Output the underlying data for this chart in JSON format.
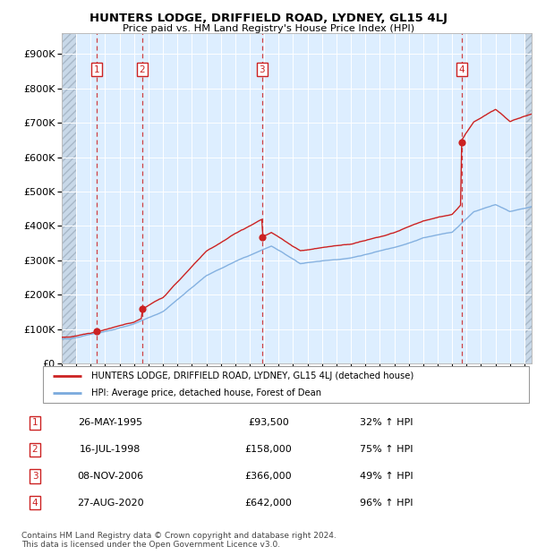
{
  "title": "HUNTERS LODGE, DRIFFIELD ROAD, LYDNEY, GL15 4LJ",
  "subtitle": "Price paid vs. HM Land Registry's House Price Index (HPI)",
  "ytick_values": [
    0,
    100000,
    200000,
    300000,
    400000,
    500000,
    600000,
    700000,
    800000,
    900000
  ],
  "ylim": [
    0,
    960000
  ],
  "xlim_start": 1993.0,
  "xlim_end": 2025.5,
  "hpi_color": "#7aaadd",
  "price_color": "#cc2222",
  "bg_plain": "#ddeeff",
  "bg_hatch_face": "#d0dff0",
  "bg_hatch_edge": "#b0c8dd",
  "grid_color": "#ffffff",
  "purchases": [
    {
      "label": "1",
      "date": "26-MAY-1995",
      "price": 93500,
      "pct": "32% ↑ HPI",
      "year": 1995.4
    },
    {
      "label": "2",
      "date": "16-JUL-1998",
      "price": 158000,
      "pct": "75% ↑ HPI",
      "year": 1998.55
    },
    {
      "label": "3",
      "date": "08-NOV-2006",
      "price": 366000,
      "pct": "49% ↑ HPI",
      "year": 2006.85
    },
    {
      "label": "4",
      "date": "27-AUG-2020",
      "price": 642000,
      "pct": "96% ↑ HPI",
      "year": 2020.65
    }
  ],
  "legend_line1": "HUNTERS LODGE, DRIFFIELD ROAD, LYDNEY, GL15 4LJ (detached house)",
  "legend_line2": "HPI: Average price, detached house, Forest of Dean",
  "footnote": "Contains HM Land Registry data © Crown copyright and database right 2024.\nThis data is licensed under the Open Government Licence v3.0.",
  "table_rows": [
    [
      "1",
      "26-MAY-1995",
      "£93,500",
      "32% ↑ HPI"
    ],
    [
      "2",
      "16-JUL-1998",
      "£158,000",
      "75% ↑ HPI"
    ],
    [
      "3",
      "08-NOV-2006",
      "£366,000",
      "49% ↑ HPI"
    ],
    [
      "4",
      "27-AUG-2020",
      "£642,000",
      "96% ↑ HPI"
    ]
  ],
  "hatch_left_end": 1994.0,
  "hatch_right_start": 2025.0
}
